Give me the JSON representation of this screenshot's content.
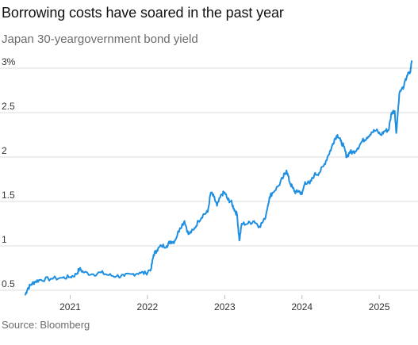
{
  "header": {
    "title": "Borrowing costs have soared in the past year",
    "subtitle": "Japan 30-yeargovernment bond yield"
  },
  "footer": {
    "source": "Source: Bloomberg"
  },
  "chart_data": {
    "type": "line",
    "title": "Borrowing costs have soared in the past year",
    "subtitle": "Japan 30-yeargovernment bond yield",
    "xlabel": "",
    "ylabel": "",
    "ylim": [
      0.5,
      3
    ],
    "xlim": [
      2020.4,
      2025.45
    ],
    "y_ticks": [
      0.5,
      1,
      1.5,
      2,
      2.5,
      3
    ],
    "y_tick_labels": [
      "0.5",
      "1",
      "1.5",
      "2",
      "2.5",
      "3%"
    ],
    "x_ticks": [
      2021,
      2022,
      2023,
      2024,
      2025
    ],
    "x_tick_labels": [
      "2021",
      "2022",
      "2023",
      "2024",
      "2025"
    ],
    "grid": "horizontal",
    "line_color": "#1e8fe1",
    "series": [
      {
        "values": [
          [
            2020.42,
            0.45
          ],
          [
            2020.45,
            0.52
          ],
          [
            2020.5,
            0.57
          ],
          [
            2020.55,
            0.6
          ],
          [
            2020.62,
            0.62
          ],
          [
            2020.75,
            0.63
          ],
          [
            2020.9,
            0.64
          ],
          [
            2021.0,
            0.65
          ],
          [
            2021.08,
            0.68
          ],
          [
            2021.12,
            0.74
          ],
          [
            2021.18,
            0.7
          ],
          [
            2021.3,
            0.68
          ],
          [
            2021.4,
            0.7
          ],
          [
            2021.5,
            0.67
          ],
          [
            2021.6,
            0.66
          ],
          [
            2021.7,
            0.66
          ],
          [
            2021.8,
            0.68
          ],
          [
            2021.9,
            0.7
          ],
          [
            2021.98,
            0.69
          ],
          [
            2022.05,
            0.75
          ],
          [
            2022.08,
            0.9
          ],
          [
            2022.12,
            0.95
          ],
          [
            2022.18,
            1.0
          ],
          [
            2022.25,
            1.0
          ],
          [
            2022.3,
            1.05
          ],
          [
            2022.35,
            1.05
          ],
          [
            2022.42,
            1.2
          ],
          [
            2022.48,
            1.28
          ],
          [
            2022.53,
            1.13
          ],
          [
            2022.6,
            1.18
          ],
          [
            2022.66,
            1.28
          ],
          [
            2022.72,
            1.35
          ],
          [
            2022.78,
            1.38
          ],
          [
            2022.82,
            1.6
          ],
          [
            2022.86,
            1.55
          ],
          [
            2022.9,
            1.45
          ],
          [
            2022.96,
            1.58
          ],
          [
            2023.0,
            1.6
          ],
          [
            2023.04,
            1.52
          ],
          [
            2023.08,
            1.5
          ],
          [
            2023.12,
            1.42
          ],
          [
            2023.16,
            1.35
          ],
          [
            2023.19,
            1.06
          ],
          [
            2023.22,
            1.25
          ],
          [
            2023.3,
            1.25
          ],
          [
            2023.38,
            1.28
          ],
          [
            2023.45,
            1.22
          ],
          [
            2023.52,
            1.3
          ],
          [
            2023.58,
            1.55
          ],
          [
            2023.62,
            1.6
          ],
          [
            2023.7,
            1.68
          ],
          [
            2023.76,
            1.78
          ],
          [
            2023.8,
            1.85
          ],
          [
            2023.84,
            1.72
          ],
          [
            2023.88,
            1.65
          ],
          [
            2023.92,
            1.6
          ],
          [
            2023.96,
            1.62
          ],
          [
            2024.0,
            1.58
          ],
          [
            2024.04,
            1.72
          ],
          [
            2024.1,
            1.7
          ],
          [
            2024.16,
            1.8
          ],
          [
            2024.22,
            1.82
          ],
          [
            2024.28,
            1.9
          ],
          [
            2024.34,
            2.02
          ],
          [
            2024.38,
            2.1
          ],
          [
            2024.42,
            2.2
          ],
          [
            2024.46,
            2.25
          ],
          [
            2024.5,
            2.18
          ],
          [
            2024.54,
            2.12
          ],
          [
            2024.58,
            2.0
          ],
          [
            2024.62,
            2.06
          ],
          [
            2024.66,
            2.05
          ],
          [
            2024.72,
            2.1
          ],
          [
            2024.78,
            2.18
          ],
          [
            2024.84,
            2.22
          ],
          [
            2024.9,
            2.28
          ],
          [
            2024.96,
            2.3
          ],
          [
            2025.02,
            2.25
          ],
          [
            2025.08,
            2.3
          ],
          [
            2025.12,
            2.3
          ],
          [
            2025.16,
            2.5
          ],
          [
            2025.2,
            2.52
          ],
          [
            2025.22,
            2.27
          ],
          [
            2025.26,
            2.72
          ],
          [
            2025.32,
            2.8
          ],
          [
            2025.36,
            2.92
          ],
          [
            2025.4,
            2.95
          ],
          [
            2025.42,
            3.08
          ]
        ]
      }
    ]
  }
}
